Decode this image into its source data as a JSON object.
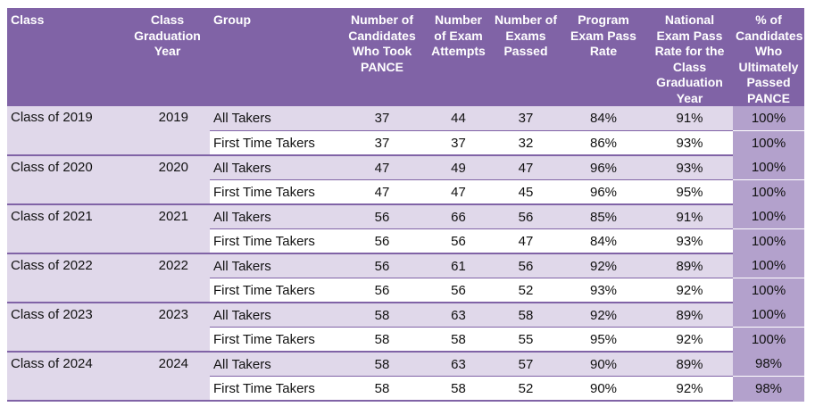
{
  "headers": {
    "class": "Class",
    "grad_year": "Class Graduation Year",
    "group": "Group",
    "candidates": "Number of Candidates Who Took PANCE",
    "attempts": "Number of Exam Attempts",
    "passed": "Number of Exams Passed",
    "program_rate": "Program Exam Pass Rate",
    "national_rate": "National Exam Pass Rate for the Class Graduation Year",
    "ultimate": "% of Candidates Who Ultimately Passed PANCE"
  },
  "rows": [
    {
      "class": "Class of 2019",
      "year": "2019",
      "all": {
        "group": "All Takers",
        "candidates": "37",
        "attempts": "44",
        "passed": "37",
        "program_rate": "84%",
        "national_rate": "91%",
        "ultimate": "100%"
      },
      "first": {
        "group": "First Time Takers",
        "candidates": "37",
        "attempts": "37",
        "passed": "32",
        "program_rate": "86%",
        "national_rate": "93%",
        "ultimate": "100%"
      }
    },
    {
      "class": "Class of 2020",
      "year": "2020",
      "all": {
        "group": "All Takers",
        "candidates": "47",
        "attempts": "49",
        "passed": "47",
        "program_rate": "96%",
        "national_rate": "93%",
        "ultimate": "100%"
      },
      "first": {
        "group": "First Time Takers",
        "candidates": "47",
        "attempts": "47",
        "passed": "45",
        "program_rate": "96%",
        "national_rate": "95%",
        "ultimate": "100%"
      }
    },
    {
      "class": "Class of 2021",
      "year": "2021",
      "all": {
        "group": "All Takers",
        "candidates": "56",
        "attempts": "66",
        "passed": "56",
        "program_rate": "85%",
        "national_rate": "91%",
        "ultimate": "100%"
      },
      "first": {
        "group": "First Time Takers",
        "candidates": "56",
        "attempts": "56",
        "passed": "47",
        "program_rate": "84%",
        "national_rate": "93%",
        "ultimate": "100%"
      }
    },
    {
      "class": "Class of 2022",
      "year": "2022",
      "all": {
        "group": "All Takers",
        "candidates": "56",
        "attempts": "61",
        "passed": "56",
        "program_rate": "92%",
        "national_rate": "89%",
        "ultimate": "100%"
      },
      "first": {
        "group": "First Time Takers",
        "candidates": "56",
        "attempts": "56",
        "passed": "52",
        "program_rate": "93%",
        "national_rate": "92%",
        "ultimate": "100%"
      }
    },
    {
      "class": "Class of 2023",
      "year": "2023",
      "all": {
        "group": "All Takers",
        "candidates": "58",
        "attempts": "63",
        "passed": "58",
        "program_rate": "92%",
        "national_rate": "89%",
        "ultimate": "100%"
      },
      "first": {
        "group": "First Time Takers",
        "candidates": "58",
        "attempts": "58",
        "passed": "55",
        "program_rate": "95%",
        "national_rate": "92%",
        "ultimate": "100%"
      }
    },
    {
      "class": "Class of 2024",
      "year": "2024",
      "all": {
        "group": "All Takers",
        "candidates": "58",
        "attempts": "63",
        "passed": "57",
        "program_rate": "90%",
        "national_rate": "89%",
        "ultimate": "98%"
      },
      "first": {
        "group": "First Time Takers",
        "candidates": "58",
        "attempts": "58",
        "passed": "52",
        "program_rate": "90%",
        "national_rate": "92%",
        "ultimate": "98%"
      }
    }
  ],
  "colors": {
    "header_bg": "#8063a6",
    "row_shade": "#e0d8ea",
    "ultimate_column": "#b3a1cc"
  }
}
